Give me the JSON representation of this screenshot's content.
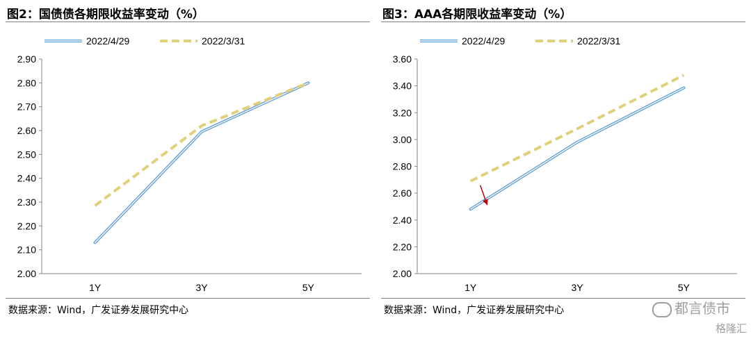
{
  "panels": [
    {
      "title": "图2：国债债各期限收益率变动（%）",
      "source": "数据来源：Wind，广发证券发展研究中心"
    },
    {
      "title": "图3：AAA各期限收益率变动（%）",
      "source": "数据来源：Wind，广发证券发展研究中心"
    }
  ],
  "watermark": {
    "main": "都言债市",
    "sub": "格隆汇"
  },
  "chart_data": [
    {
      "type": "line",
      "categories": [
        "1Y",
        "3Y",
        "5Y"
      ],
      "series": [
        {
          "name": "2022/4/29",
          "values": [
            2.13,
            2.595,
            2.8
          ],
          "color": "#5b9bd5",
          "style": "double-solid"
        },
        {
          "name": "2022/3/31",
          "values": [
            2.285,
            2.62,
            2.8
          ],
          "color": "#e2cf7a",
          "style": "dashed"
        }
      ],
      "ylim": [
        2.0,
        2.9
      ],
      "yticks": [
        "2.00",
        "2.10",
        "2.20",
        "2.30",
        "2.40",
        "2.50",
        "2.60",
        "2.70",
        "2.80",
        "2.90"
      ],
      "legend": "top",
      "grid": false
    },
    {
      "type": "line",
      "categories": [
        "1Y",
        "3Y",
        "5Y"
      ],
      "series": [
        {
          "name": "2022/4/29",
          "values": [
            2.48,
            2.98,
            3.385
          ],
          "color": "#5b9bd5",
          "style": "double-solid"
        },
        {
          "name": "2022/3/31",
          "values": [
            2.69,
            3.08,
            3.48
          ],
          "color": "#e2cf7a",
          "style": "dashed"
        }
      ],
      "ylim": [
        2.0,
        3.6
      ],
      "yticks": [
        "2.00",
        "2.20",
        "2.40",
        "2.60",
        "2.80",
        "3.00",
        "3.20",
        "3.40",
        "3.60"
      ],
      "legend": "top",
      "grid": false,
      "annotation": {
        "type": "arrow",
        "color": "#c00000",
        "from_value": 2.69,
        "to_value": 2.48,
        "category_index": 0
      }
    }
  ]
}
